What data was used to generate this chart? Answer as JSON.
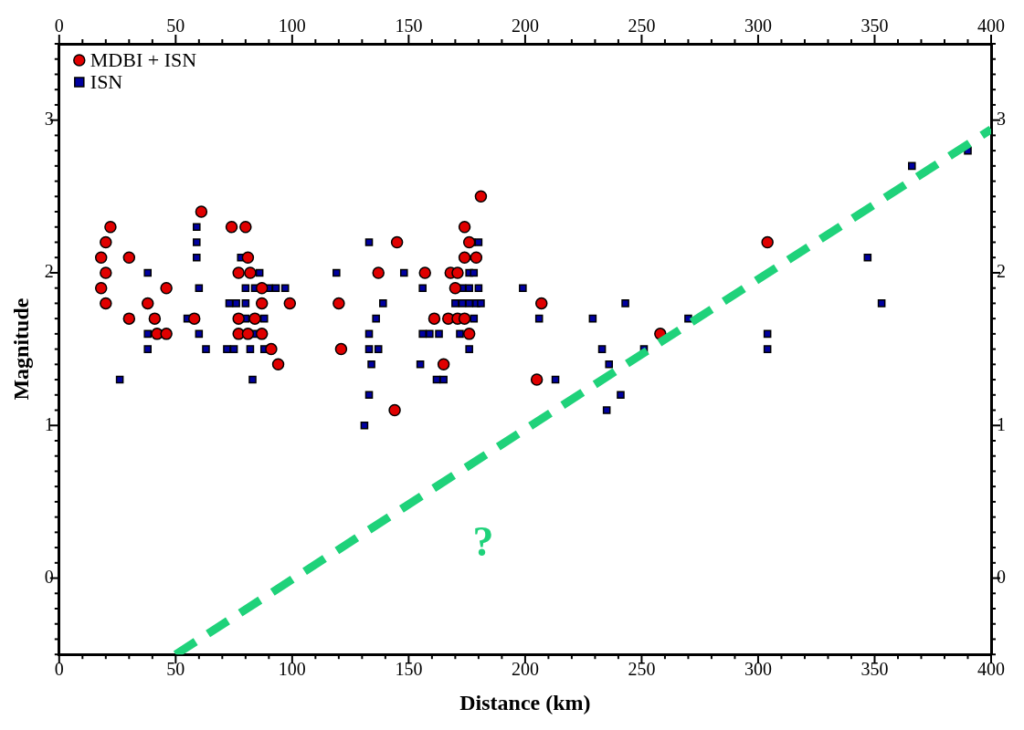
{
  "chart_data": {
    "type": "scatter",
    "xlabel": "Distance (km)",
    "ylabel": "Magnitude",
    "xlim": [
      0,
      400
    ],
    "ylim": [
      -0.5,
      3.5
    ],
    "x2lim": [
      0,
      400
    ],
    "y2lim": [
      -0.5,
      3.5
    ],
    "xticks": [
      0,
      {
        "value": 10,
        "label": null
      },
      {
        "value": 20,
        "label": null
      },
      {
        "value": 30,
        "label": null
      },
      {
        "value": 40,
        "label": null
      },
      50,
      {
        "value": 60,
        "label": null
      },
      {
        "value": 70,
        "label": null
      },
      {
        "value": 80,
        "label": null
      },
      {
        "value": 90,
        "label": null
      },
      100,
      {
        "value": 110,
        "label": null
      },
      {
        "value": 120,
        "label": null
      },
      {
        "value": 130,
        "label": null
      },
      {
        "value": 140,
        "label": null
      },
      150,
      {
        "value": 160,
        "label": null
      },
      {
        "value": 170,
        "label": null
      },
      {
        "value": 180,
        "label": null
      },
      {
        "value": 190,
        "label": null
      },
      200,
      {
        "value": 210,
        "label": null
      },
      {
        "value": 220,
        "label": null
      },
      {
        "value": 230,
        "label": null
      },
      {
        "value": 240,
        "label": null
      },
      250,
      {
        "value": 260,
        "label": null
      },
      {
        "value": 270,
        "label": null
      },
      {
        "value": 280,
        "label": null
      },
      {
        "value": 290,
        "label": null
      },
      300,
      {
        "value": 310,
        "label": null
      },
      {
        "value": 320,
        "label": null
      },
      {
        "value": 330,
        "label": null
      },
      {
        "value": 340,
        "label": null
      },
      350,
      {
        "value": 360,
        "label": null
      },
      {
        "value": 370,
        "label": null
      },
      {
        "value": 380,
        "label": null
      },
      {
        "value": 390,
        "label": null
      },
      400
    ],
    "x2ticks": [
      0,
      {
        "value": 10,
        "label": null
      },
      {
        "value": 20,
        "label": null
      },
      {
        "value": 30,
        "label": null
      },
      {
        "value": 40,
        "label": null
      },
      50,
      {
        "value": 60,
        "label": null
      },
      {
        "value": 70,
        "label": null
      },
      {
        "value": 80,
        "label": null
      },
      {
        "value": 90,
        "label": null
      },
      100,
      {
        "value": 110,
        "label": null
      },
      {
        "value": 120,
        "label": null
      },
      {
        "value": 130,
        "label": null
      },
      {
        "value": 140,
        "label": null
      },
      150,
      {
        "value": 160,
        "label": null
      },
      {
        "value": 170,
        "label": null
      },
      {
        "value": 180,
        "label": null
      },
      {
        "value": 190,
        "label": null
      },
      200,
      {
        "value": 210,
        "label": null
      },
      {
        "value": 220,
        "label": null
      },
      {
        "value": 230,
        "label": null
      },
      {
        "value": 240,
        "label": null
      },
      250,
      {
        "value": 260,
        "label": null
      },
      {
        "value": 270,
        "label": null
      },
      {
        "value": 280,
        "label": null
      },
      {
        "value": 290,
        "label": null
      },
      300,
      {
        "value": 310,
        "label": null
      },
      {
        "value": 320,
        "label": null
      },
      {
        "value": 330,
        "label": null
      },
      {
        "value": 340,
        "label": null
      },
      350,
      {
        "value": 360,
        "label": null
      },
      {
        "value": 370,
        "label": null
      },
      {
        "value": 380,
        "label": null
      },
      {
        "value": 390,
        "label": null
      },
      400
    ],
    "yticks": [
      {
        "value": -0.5,
        "label": null
      },
      {
        "value": -0.4,
        "label": null
      },
      {
        "value": -0.3,
        "label": null
      },
      {
        "value": -0.2,
        "label": null
      },
      {
        "value": -0.1,
        "label": null
      },
      0,
      {
        "value": 0.1,
        "label": null
      },
      {
        "value": 0.2,
        "label": null
      },
      {
        "value": 0.3,
        "label": null
      },
      {
        "value": 0.4,
        "label": null
      },
      {
        "value": 0.5,
        "label": null
      },
      {
        "value": 0.6,
        "label": null
      },
      {
        "value": 0.7,
        "label": null
      },
      {
        "value": 0.8,
        "label": null
      },
      {
        "value": 0.9,
        "label": null
      },
      1,
      {
        "value": 1.1,
        "label": null
      },
      {
        "value": 1.2,
        "label": null
      },
      {
        "value": 1.3,
        "label": null
      },
      {
        "value": 1.4,
        "label": null
      },
      {
        "value": 1.5,
        "label": null
      },
      {
        "value": 1.6,
        "label": null
      },
      {
        "value": 1.7,
        "label": null
      },
      {
        "value": 1.8,
        "label": null
      },
      {
        "value": 1.9,
        "label": null
      },
      2,
      {
        "value": 2.1,
        "label": null
      },
      {
        "value": 2.2,
        "label": null
      },
      {
        "value": 2.3,
        "label": null
      },
      {
        "value": 2.4,
        "label": null
      },
      {
        "value": 2.5,
        "label": null
      },
      {
        "value": 2.6,
        "label": null
      },
      {
        "value": 2.7,
        "label": null
      },
      {
        "value": 2.8,
        "label": null
      },
      {
        "value": 2.9,
        "label": null
      },
      3,
      {
        "value": 3.1,
        "label": null
      },
      {
        "value": 3.2,
        "label": null
      },
      {
        "value": 3.3,
        "label": null
      },
      {
        "value": 3.4,
        "label": null
      },
      {
        "value": 3.5,
        "label": null
      }
    ],
    "y2ticks": [
      {
        "value": -0.5,
        "label": null
      },
      {
        "value": -0.4,
        "label": null
      },
      {
        "value": -0.3,
        "label": null
      },
      {
        "value": -0.2,
        "label": null
      },
      {
        "value": -0.1,
        "label": null
      },
      0,
      {
        "value": 0.1,
        "label": null
      },
      {
        "value": 0.2,
        "label": null
      },
      {
        "value": 0.3,
        "label": null
      },
      {
        "value": 0.4,
        "label": null
      },
      {
        "value": 0.5,
        "label": null
      },
      {
        "value": 0.6,
        "label": null
      },
      {
        "value": 0.7,
        "label": null
      },
      {
        "value": 0.8,
        "label": null
      },
      {
        "value": 0.9,
        "label": null
      },
      1,
      {
        "value": 1.1,
        "label": null
      },
      {
        "value": 1.2,
        "label": null
      },
      {
        "value": 1.3,
        "label": null
      },
      {
        "value": 1.4,
        "label": null
      },
      {
        "value": 1.5,
        "label": null
      },
      {
        "value": 1.6,
        "label": null
      },
      {
        "value": 1.7,
        "label": null
      },
      {
        "value": 1.8,
        "label": null
      },
      {
        "value": 1.9,
        "label": null
      },
      2,
      {
        "value": 2.1,
        "label": null
      },
      {
        "value": 2.2,
        "label": null
      },
      {
        "value": 2.3,
        "label": null
      },
      {
        "value": 2.4,
        "label": null
      },
      {
        "value": 2.5,
        "label": null
      },
      {
        "value": 2.6,
        "label": null
      },
      {
        "value": 2.7,
        "label": null
      },
      {
        "value": 2.8,
        "label": null
      },
      {
        "value": 2.9,
        "label": null
      },
      3,
      {
        "value": 3.1,
        "label": null
      },
      {
        "value": 3.2,
        "label": null
      },
      {
        "value": 3.3,
        "label": null
      },
      {
        "value": 3.4,
        "label": null
      },
      {
        "value": 3.5,
        "label": null
      }
    ],
    "grid": false,
    "legend": "top left",
    "series": [
      {
        "name": "MDBI + ISN",
        "color": "#e00000",
        "marker": "circle",
        "x": [
          20,
          18,
          20,
          18,
          20,
          22,
          30,
          46,
          38,
          30,
          41,
          42,
          46,
          61,
          58,
          74,
          80,
          81,
          77,
          82,
          87,
          87,
          99,
          77,
          84,
          77,
          81,
          87,
          91,
          94,
          181,
          174,
          145,
          176,
          174,
          179,
          137,
          157,
          168,
          171,
          170,
          120,
          207,
          161,
          167,
          171,
          174,
          176,
          121,
          165,
          205,
          144,
          258,
          304
        ],
        "values": [
          2.2,
          2.1,
          2.0,
          1.9,
          1.8,
          2.3,
          2.1,
          1.9,
          1.8,
          1.7,
          1.7,
          1.6,
          1.6,
          2.4,
          1.7,
          2.3,
          2.3,
          2.1,
          2.0,
          2.0,
          1.9,
          1.8,
          1.8,
          1.7,
          1.7,
          1.6,
          1.6,
          1.6,
          1.5,
          1.4,
          2.5,
          2.3,
          2.2,
          2.2,
          2.1,
          2.1,
          2.0,
          2.0,
          2.0,
          2.0,
          1.9,
          1.8,
          1.8,
          1.7,
          1.7,
          1.7,
          1.7,
          1.6,
          1.5,
          1.4,
          1.3,
          1.1,
          1.6,
          2.2
        ]
      },
      {
        "name": "ISN",
        "color": "#0000a0",
        "marker": "square",
        "x": [
          38,
          38,
          38,
          26,
          59,
          59,
          59,
          60,
          55,
          60,
          63,
          78,
          86,
          80,
          84,
          90,
          93,
          97,
          73,
          76,
          80,
          80,
          88,
          84,
          72,
          75,
          82,
          88,
          83,
          133,
          177,
          180,
          119,
          148,
          176,
          178,
          156,
          173,
          176,
          180,
          199,
          139,
          170,
          173,
          176,
          179,
          181,
          136,
          178,
          206,
          133,
          156,
          159,
          163,
          172,
          133,
          137,
          176,
          134,
          155,
          162,
          165,
          213,
          133,
          131,
          229,
          243,
          233,
          251,
          270,
          304,
          304,
          347,
          353,
          366,
          390,
          236,
          241,
          235
        ],
        "values": [
          2.0,
          1.6,
          1.5,
          1.3,
          2.3,
          2.2,
          2.1,
          1.9,
          1.7,
          1.6,
          1.5,
          2.1,
          2.0,
          1.9,
          1.9,
          1.9,
          1.9,
          1.9,
          1.8,
          1.8,
          1.8,
          1.7,
          1.7,
          1.6,
          1.5,
          1.5,
          1.5,
          1.5,
          1.3,
          2.2,
          2.2,
          2.2,
          2.0,
          2.0,
          2.0,
          2.0,
          1.9,
          1.9,
          1.9,
          1.9,
          1.9,
          1.8,
          1.8,
          1.8,
          1.8,
          1.8,
          1.8,
          1.7,
          1.7,
          1.7,
          1.6,
          1.6,
          1.6,
          1.6,
          1.6,
          1.5,
          1.5,
          1.5,
          1.4,
          1.4,
          1.3,
          1.3,
          1.3,
          1.2,
          1.0,
          1.7,
          1.8,
          1.5,
          1.5,
          1.7,
          1.6,
          1.5,
          2.1,
          1.8,
          2.7,
          2.8,
          1.4,
          1.2,
          1.1
        ]
      },
      {
        "type": "line",
        "color": "#1fd27a",
        "line_style": "dashed",
        "marker": "none",
        "x": [
          50,
          400
        ],
        "values": [
          -0.5,
          2.94
        ]
      }
    ],
    "annotations": [
      "?"
    ]
  }
}
